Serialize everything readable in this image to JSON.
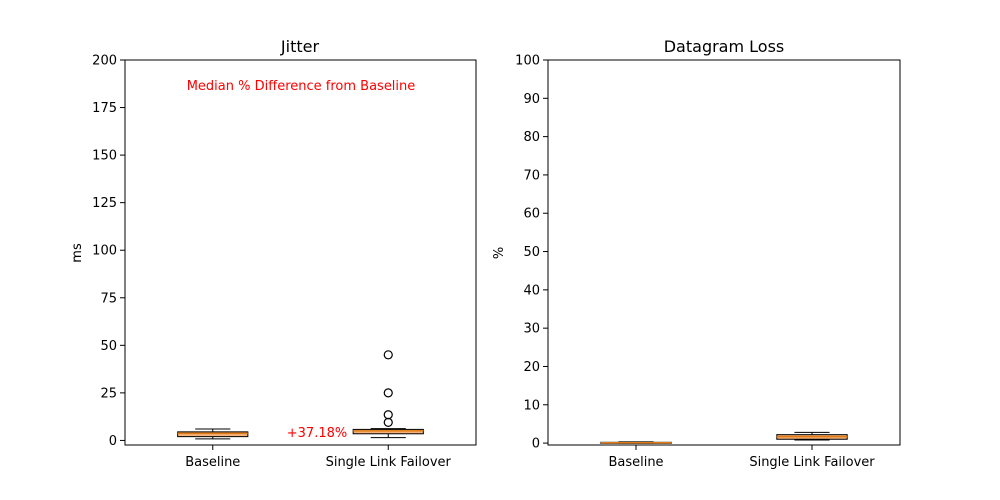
{
  "chart_data": [
    {
      "type": "box",
      "title": "Jitter",
      "xlabel": "",
      "ylabel": "ms",
      "ylim": [
        0,
        200
      ],
      "yticks": [
        0,
        25,
        50,
        75,
        100,
        125,
        150,
        175,
        200
      ],
      "categories": [
        "Baseline",
        "Single Link Failover"
      ],
      "boxes": [
        {
          "name": "Baseline",
          "whislo": 0.8,
          "q1": 2.0,
          "med": 3.7,
          "q3": 4.5,
          "whishi": 6.0,
          "fliers": []
        },
        {
          "name": "Single Link Failover",
          "whislo": 1.5,
          "q1": 3.5,
          "med": 5.0,
          "q3": 5.8,
          "whishi": 6.2,
          "fliers": [
            9.5,
            13.5,
            25.0,
            45.0
          ]
        }
      ],
      "annotation_heading": "Median % Difference from Baseline",
      "annotations": [
        "+37.18%"
      ]
    },
    {
      "type": "box",
      "title": "Datagram Loss",
      "xlabel": "",
      "ylabel": "%",
      "ylim": [
        0,
        100
      ],
      "yticks": [
        0,
        10,
        20,
        30,
        40,
        50,
        60,
        70,
        80,
        90,
        100
      ],
      "categories": [
        "Baseline",
        "Single Link Failover"
      ],
      "boxes": [
        {
          "name": "Baseline",
          "whislo": 0.0,
          "q1": 0.0,
          "med": 0.1,
          "q3": 0.2,
          "whishi": 0.3,
          "fliers": []
        },
        {
          "name": "Single Link Failover",
          "whislo": 0.8,
          "q1": 1.0,
          "med": 1.7,
          "q3": 2.2,
          "whishi": 2.8,
          "fliers": []
        }
      ]
    }
  ]
}
